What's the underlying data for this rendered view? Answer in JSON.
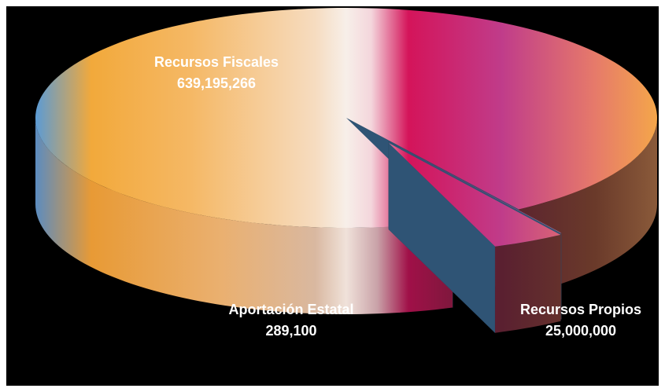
{
  "chart_data": {
    "type": "pie",
    "categories": [
      "Recursos Fiscales",
      "Aportación Estatal",
      "Recursos Propios"
    ],
    "values": [
      639195266,
      289100,
      25000000
    ],
    "value_labels": [
      "639,195,266",
      "289,100",
      "25,000,000"
    ]
  }
}
